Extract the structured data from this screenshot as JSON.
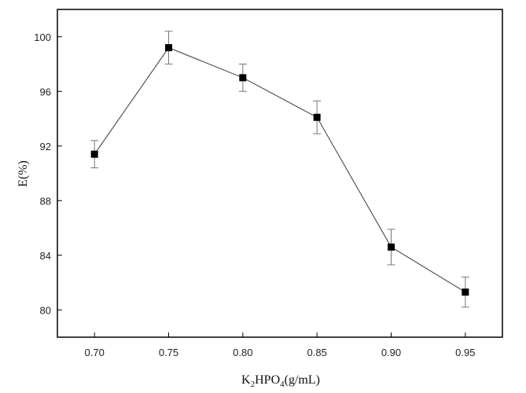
{
  "chart_data": {
    "type": "line",
    "title": "",
    "xlabel": "K2HPO4(g/mL)",
    "xlabel_parts": {
      "prefix": "K",
      "sub1": "2",
      "middle": "HPO",
      "sub2": "4",
      "suffix": "(g/mL)"
    },
    "ylabel": "E(%)",
    "xlim": [
      0.675,
      0.975
    ],
    "ylim": [
      78,
      102
    ],
    "xticks": [
      0.7,
      0.75,
      0.8,
      0.85,
      0.9,
      0.95
    ],
    "xtick_labels": [
      "0.70",
      "0.75",
      "0.80",
      "0.85",
      "0.90",
      "0.95"
    ],
    "yticks": [
      80,
      84,
      88,
      92,
      96,
      100
    ],
    "ytick_labels": [
      "80",
      "84",
      "88",
      "92",
      "96",
      "100"
    ],
    "grid": false,
    "legend": "none",
    "series": [
      {
        "x": [
          0.7,
          0.75,
          0.8,
          0.85,
          0.9,
          0.95
        ],
        "values": [
          91.4,
          99.2,
          97.0,
          94.1,
          84.6,
          81.3
        ],
        "error": [
          1.0,
          1.2,
          1.0,
          1.2,
          1.3,
          1.1
        ],
        "marker": "square",
        "color": "#000000",
        "line_color": "#555555",
        "errorbar_color": "#777777"
      }
    ]
  }
}
